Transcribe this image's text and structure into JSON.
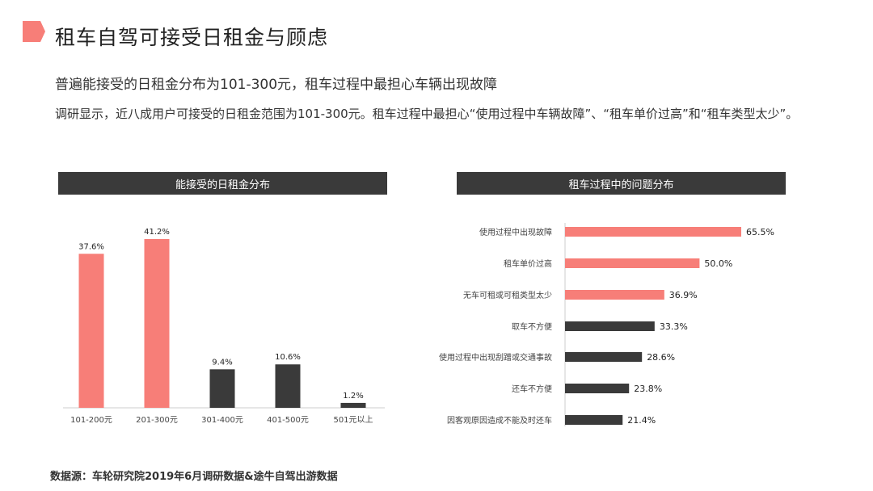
{
  "page": {
    "title": "租车自驾可接受日租金与顾虑",
    "subtitle": "普遍能接受的日租金分布为101-300元，租车过程中最担心车辆出现故障",
    "description": "调研显示，近八成用户可接受的日租金范围为101-300元。租车过程中最担心“使用过程中车辆故障”、“租车单价过高”和“租车类型太少”。",
    "source": "数据源：车轮研究院2019年6月调研数据&途牛自驾出游数据",
    "accent_color": "#f77e78",
    "dark_color": "#3a3a3a"
  },
  "chart_data": [
    {
      "type": "bar",
      "title": "能接受的日租金分布",
      "categories": [
        "101-200元",
        "201-300元",
        "301-400元",
        "401-500元",
        "501元以上"
      ],
      "values": [
        37.6,
        41.2,
        9.4,
        10.6,
        1.2
      ],
      "value_labels": [
        "37.6%",
        "41.2%",
        "9.4%",
        "10.6%",
        "1.2%"
      ],
      "colors": [
        "#f77e78",
        "#f77e78",
        "#3a3a3a",
        "#3a3a3a",
        "#3a3a3a"
      ],
      "unit": "%",
      "ylim": [
        0,
        41.2
      ],
      "grid": false
    },
    {
      "type": "bar",
      "orientation": "horizontal",
      "title": "租车过程中的问题分布",
      "categories": [
        "使用过程中出现故障",
        "租车单价过高",
        "无车可租或可租类型太少",
        "取车不方便",
        "使用过程中出现刮蹭或交通事故",
        "还车不方便",
        "因客观原因造成不能及时还车"
      ],
      "values": [
        65.5,
        50.0,
        36.9,
        33.3,
        28.6,
        23.8,
        21.4
      ],
      "value_labels": [
        "65.5%",
        "50.0%",
        "36.9%",
        "33.3%",
        "28.6%",
        "23.8%",
        "21.4%"
      ],
      "colors": [
        "#f77e78",
        "#f77e78",
        "#f77e78",
        "#3a3a3a",
        "#3a3a3a",
        "#3a3a3a",
        "#3a3a3a"
      ],
      "unit": "%",
      "xlim": [
        0,
        65.5
      ],
      "grid": false
    }
  ]
}
